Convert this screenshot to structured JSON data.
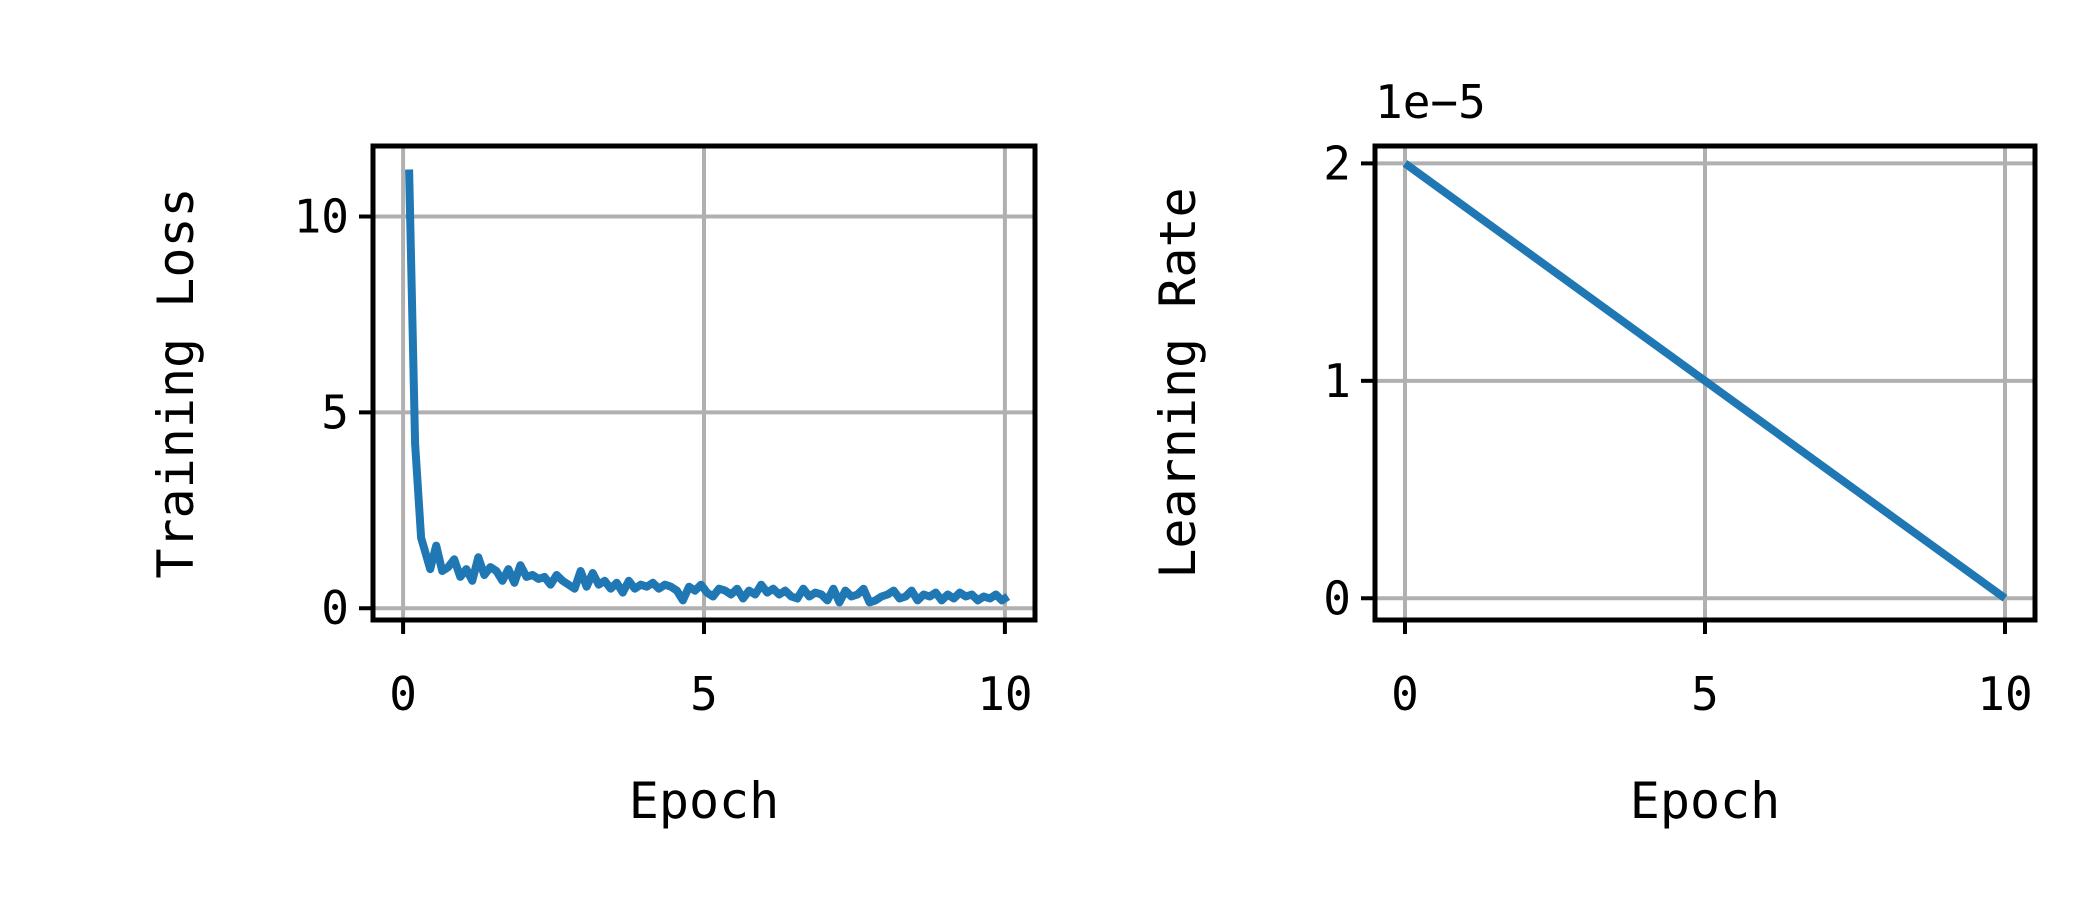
{
  "chart_data": [
    {
      "type": "line",
      "xlabel": "Epoch",
      "ylabel": "Training Loss",
      "xlim": [
        -0.5,
        10.5
      ],
      "ylim": [
        -0.3,
        11.8
      ],
      "xticks": [
        0,
        5,
        10
      ],
      "yticks": [
        0,
        5,
        10
      ],
      "xtick_labels": [
        "0",
        "5",
        "10"
      ],
      "ytick_labels": [
        "0",
        "5",
        "10"
      ],
      "offset_text": "",
      "grid": true,
      "line_color": "#1f77b4",
      "x": [
        0.1,
        0.2,
        0.3,
        0.45,
        0.55,
        0.65,
        0.75,
        0.85,
        0.95,
        1.05,
        1.15,
        1.25,
        1.35,
        1.45,
        1.55,
        1.65,
        1.75,
        1.85,
        1.95,
        2.05,
        2.15,
        2.25,
        2.35,
        2.45,
        2.55,
        2.65,
        2.75,
        2.85,
        2.95,
        3.05,
        3.15,
        3.25,
        3.35,
        3.45,
        3.55,
        3.65,
        3.75,
        3.85,
        3.95,
        4.05,
        4.15,
        4.25,
        4.35,
        4.45,
        4.55,
        4.65,
        4.75,
        4.85,
        4.95,
        5.05,
        5.15,
        5.25,
        5.35,
        5.45,
        5.55,
        5.65,
        5.75,
        5.85,
        5.95,
        6.05,
        6.15,
        6.25,
        6.35,
        6.45,
        6.55,
        6.65,
        6.75,
        6.85,
        6.95,
        7.05,
        7.15,
        7.25,
        7.35,
        7.45,
        7.55,
        7.65,
        7.75,
        7.85,
        7.95,
        8.05,
        8.15,
        8.25,
        8.35,
        8.45,
        8.55,
        8.65,
        8.75,
        8.85,
        8.95,
        9.05,
        9.15,
        9.25,
        9.35,
        9.45,
        9.55,
        9.65,
        9.75,
        9.85,
        9.95,
        10.05
      ],
      "values": [
        11.2,
        4.2,
        1.8,
        1.0,
        1.6,
        0.95,
        1.05,
        1.25,
        0.8,
        1.0,
        0.7,
        1.3,
        0.85,
        1.05,
        0.95,
        0.7,
        1.0,
        0.65,
        1.1,
        0.8,
        0.85,
        0.75,
        0.8,
        0.6,
        0.85,
        0.7,
        0.6,
        0.5,
        0.95,
        0.55,
        0.9,
        0.6,
        0.7,
        0.5,
        0.65,
        0.4,
        0.7,
        0.5,
        0.6,
        0.55,
        0.65,
        0.5,
        0.6,
        0.55,
        0.45,
        0.2,
        0.55,
        0.45,
        0.6,
        0.4,
        0.3,
        0.5,
        0.45,
        0.35,
        0.5,
        0.25,
        0.45,
        0.35,
        0.6,
        0.4,
        0.5,
        0.35,
        0.45,
        0.3,
        0.25,
        0.5,
        0.3,
        0.4,
        0.35,
        0.2,
        0.5,
        0.15,
        0.45,
        0.3,
        0.35,
        0.5,
        0.15,
        0.2,
        0.3,
        0.35,
        0.45,
        0.25,
        0.3,
        0.45,
        0.2,
        0.35,
        0.3,
        0.4,
        0.2,
        0.35,
        0.25,
        0.4,
        0.3,
        0.35,
        0.2,
        0.3,
        0.25,
        0.35,
        0.2,
        0.3
      ]
    },
    {
      "type": "line",
      "xlabel": "Epoch",
      "ylabel": "Learning Rate",
      "xlim": [
        -0.5,
        10.5
      ],
      "ylim": [
        -0.1,
        2.08
      ],
      "xticks": [
        0,
        5,
        10
      ],
      "yticks": [
        0,
        1,
        2
      ],
      "xtick_labels": [
        "0",
        "5",
        "10"
      ],
      "ytick_labels": [
        "0",
        "1",
        "2"
      ],
      "offset_text": "1e−5",
      "grid": true,
      "line_color": "#1f77b4",
      "x": [
        0,
        10
      ],
      "values": [
        2.0,
        0.0
      ]
    }
  ]
}
